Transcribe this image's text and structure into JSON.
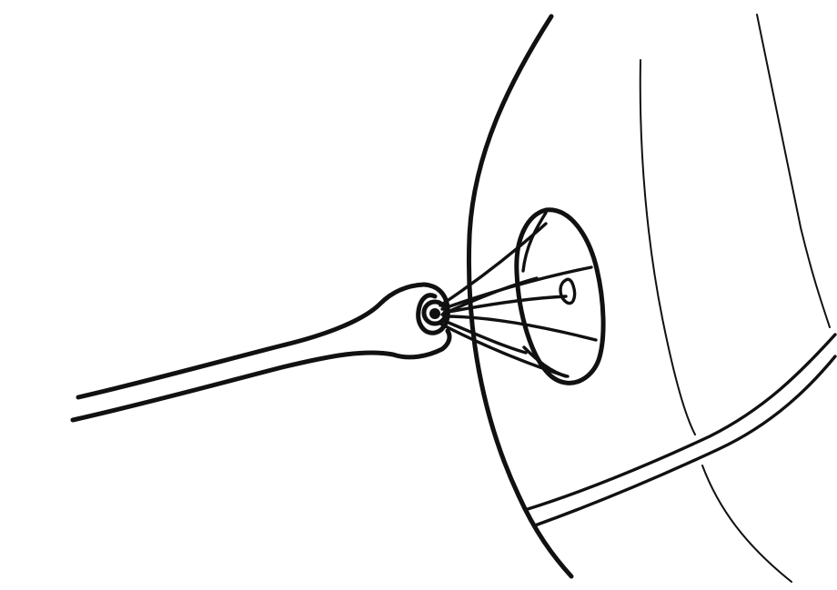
{
  "drawing": {
    "ink_color": "#111111",
    "background_color": "#ffffff"
  }
}
